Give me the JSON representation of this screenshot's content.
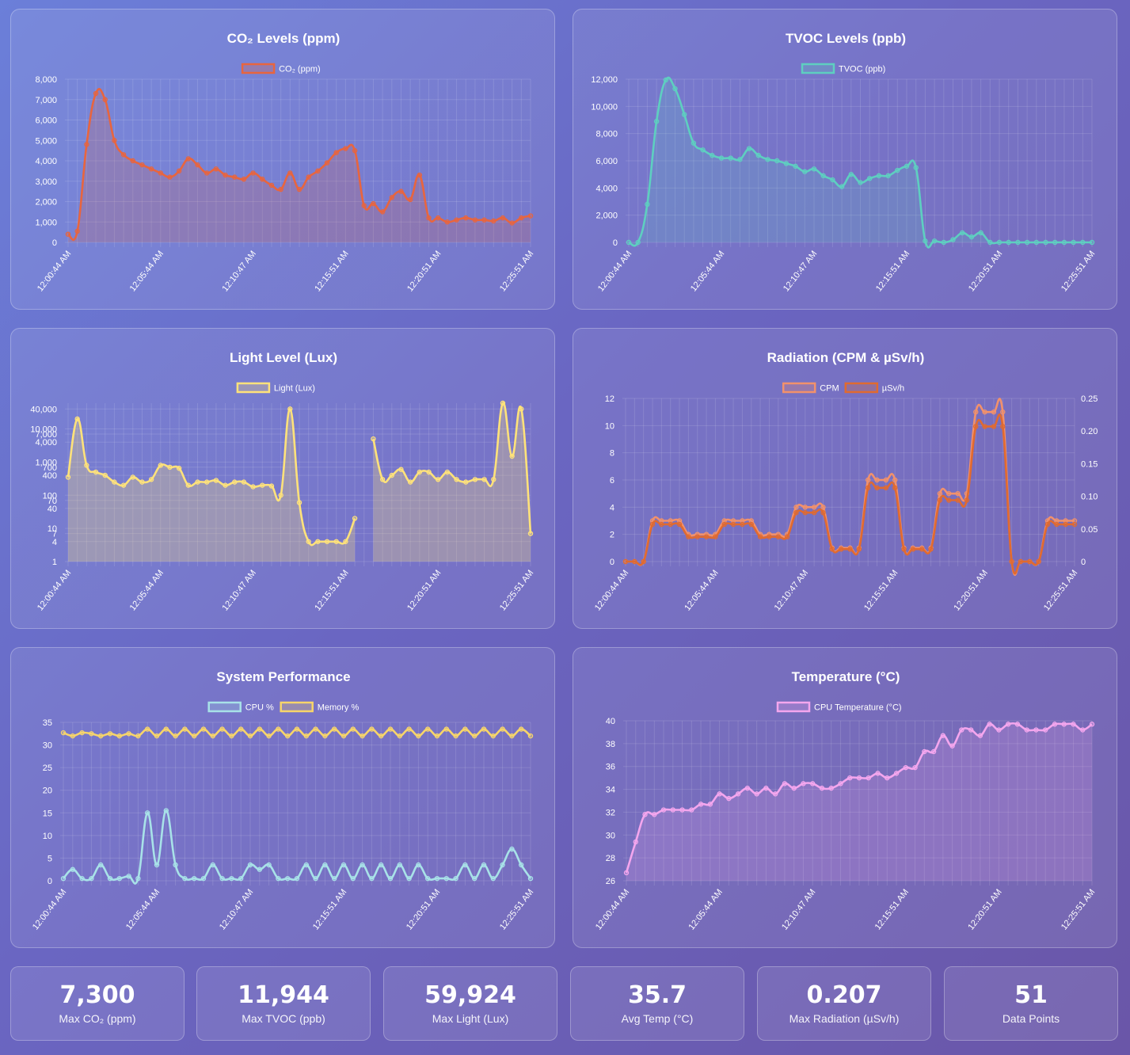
{
  "colors": {
    "co2": "#e8653e",
    "tvoc": "#5ecfc0",
    "light": "#ffe27a",
    "cpm": "#f2916b",
    "usv": "#e06a30",
    "cpu": "#a8e2e8",
    "mem": "#f7d56a",
    "temp": "#f4a6ee"
  },
  "chart_data": [
    {
      "id": "co2",
      "type": "area",
      "title": "CO₂ Levels (ppm)",
      "x_ticks": [
        "12:00:44 AM",
        "12:05:44 AM",
        "12:10:47 AM",
        "12:15:51 AM",
        "12:20:51 AM",
        "12:25:51 AM"
      ],
      "y_ticks": [
        "0",
        "1,000",
        "2,000",
        "3,000",
        "4,000",
        "5,000",
        "6,000",
        "7,000",
        "8,000"
      ],
      "ylim": [
        0,
        8000
      ],
      "series": [
        {
          "name": "CO₂ (ppm)",
          "color": "#e8653e",
          "values": [
            400,
            550,
            4800,
            7300,
            7000,
            5000,
            4300,
            4000,
            3800,
            3600,
            3400,
            3200,
            3500,
            4100,
            3800,
            3400,
            3600,
            3300,
            3200,
            3100,
            3400,
            3100,
            2800,
            2600,
            3400,
            2600,
            3200,
            3500,
            3900,
            4400,
            4600,
            4500,
            1800,
            1900,
            1500,
            2200,
            2500,
            2100,
            3300,
            1200,
            1200,
            1000,
            1100,
            1200,
            1100,
            1100,
            1050,
            1200,
            950,
            1200,
            1300
          ]
        }
      ]
    },
    {
      "id": "tvoc",
      "type": "area",
      "title": "TVOC Levels (ppb)",
      "x_ticks": [
        "12:00:44 AM",
        "12:05:44 AM",
        "12:10:47 AM",
        "12:15:51 AM",
        "12:20:51 AM",
        "12:25:51 AM"
      ],
      "y_ticks": [
        "0",
        "2,000",
        "4,000",
        "6,000",
        "8,000",
        "10,000",
        "12,000"
      ],
      "ylim": [
        0,
        12000
      ],
      "series": [
        {
          "name": "TVOC (ppb)",
          "color": "#5ecfc0",
          "values": [
            0,
            0,
            2800,
            8900,
            11944,
            11300,
            9400,
            7300,
            6800,
            6400,
            6200,
            6200,
            6100,
            6900,
            6400,
            6100,
            6000,
            5800,
            5600,
            5200,
            5400,
            4900,
            4600,
            4100,
            5000,
            4400,
            4700,
            4900,
            4900,
            5300,
            5600,
            5500,
            100,
            100,
            0,
            200,
            700,
            400,
            700,
            0,
            0,
            0,
            0,
            0,
            0,
            0,
            0,
            0,
            0,
            0,
            0
          ]
        }
      ]
    },
    {
      "id": "light",
      "type": "area",
      "title": "Light Level (Lux)",
      "x_ticks": [
        "12:00:44 AM",
        "12:05:44 AM",
        "12:10:47 AM",
        "12:15:51 AM",
        "12:20:51 AM",
        "12:25:51 AM"
      ],
      "y_ticks": [
        {
          "v": 1,
          "l": "1"
        },
        {
          "v": 4,
          "l": "4"
        },
        {
          "v": 7,
          "l": "7"
        },
        {
          "v": 10,
          "l": "10"
        },
        {
          "v": 40,
          "l": "40"
        },
        {
          "v": 70,
          "l": "70"
        },
        {
          "v": 100,
          "l": "100"
        },
        {
          "v": 400,
          "l": "400"
        },
        {
          "v": 700,
          "l": "700"
        },
        {
          "v": 1000,
          "l": "1,000"
        },
        {
          "v": 4000,
          "l": "4,000"
        },
        {
          "v": 7000,
          "l": "7,000"
        },
        {
          "v": 10000,
          "l": "10,000"
        },
        {
          "v": 40000,
          "l": "40,000"
        }
      ],
      "scale": "log",
      "ylim": [
        1,
        59924
      ],
      "series": [
        {
          "name": "Light (Lux)",
          "color": "#ffe27a",
          "values": [
            350,
            20000,
            800,
            500,
            400,
            250,
            200,
            350,
            250,
            300,
            800,
            700,
            650,
            200,
            250,
            250,
            280,
            200,
            250,
            250,
            180,
            200,
            190,
            100,
            40000,
            60,
            4,
            4,
            4,
            4,
            4,
            20,
            null,
            5000,
            300,
            400,
            600,
            250,
            500,
            500,
            300,
            500,
            300,
            250,
            300,
            300,
            300,
            59924,
            1500,
            40000,
            7
          ]
        }
      ]
    },
    {
      "id": "radiation",
      "type": "line",
      "title": "Radiation (CPM & µSv/h)",
      "x_ticks": [
        "12:00:44 AM",
        "12:05:44 AM",
        "12:10:47 AM",
        "12:15:51 AM",
        "12:20:51 AM",
        "12:25:51 AM"
      ],
      "y_ticks": [
        "0",
        "2",
        "4",
        "6",
        "8",
        "10",
        "12"
      ],
      "y2_ticks": [
        "0",
        "0.05",
        "0.10",
        "0.15",
        "0.20",
        "0.25"
      ],
      "ylim": [
        0,
        12
      ],
      "y2lim": [
        0,
        0.25
      ],
      "series": [
        {
          "name": "CPM",
          "color": "#f2916b",
          "values": [
            0,
            0,
            0,
            3,
            3,
            3,
            3,
            2,
            2,
            2,
            2,
            3,
            3,
            3,
            3,
            2,
            2,
            2,
            2,
            4,
            4,
            4,
            4,
            1,
            1,
            1,
            1,
            6,
            6,
            6,
            6,
            1,
            1,
            1,
            1,
            5,
            5,
            5,
            5,
            11,
            11,
            11,
            11,
            0,
            0,
            0,
            0,
            3,
            3,
            3,
            3
          ]
        },
        {
          "name": "µSv/h",
          "color": "#e06a30",
          "values": [
            0,
            0,
            0,
            0.057,
            0.057,
            0.057,
            0.057,
            0.038,
            0.038,
            0.038,
            0.038,
            0.057,
            0.057,
            0.057,
            0.057,
            0.038,
            0.038,
            0.038,
            0.038,
            0.075,
            0.075,
            0.075,
            0.075,
            0.019,
            0.019,
            0.019,
            0.019,
            0.113,
            0.113,
            0.113,
            0.113,
            0.019,
            0.019,
            0.019,
            0.019,
            0.094,
            0.094,
            0.094,
            0.094,
            0.207,
            0.207,
            0.207,
            0.207,
            0,
            0,
            0,
            0,
            0.057,
            0.057,
            0.057,
            0.057
          ]
        }
      ]
    },
    {
      "id": "system",
      "type": "line",
      "title": "System Performance",
      "x_ticks": [
        "12:00:44 AM",
        "12:05:44 AM",
        "12:10:47 AM",
        "12:15:51 AM",
        "12:20:51 AM",
        "12:25:51 AM"
      ],
      "y_ticks": [
        "0",
        "5",
        "10",
        "15",
        "20",
        "25",
        "30",
        "35"
      ],
      "ylim": [
        0,
        35
      ],
      "series": [
        {
          "name": "CPU %",
          "color": "#a8e2e8",
          "values": [
            0.5,
            2.5,
            0.5,
            0.5,
            3.5,
            0.5,
            0.5,
            1,
            0.5,
            15,
            3.5,
            15.5,
            3.5,
            0.5,
            0.5,
            0.5,
            3.5,
            0.5,
            0.5,
            0.5,
            3.5,
            2.5,
            3.5,
            0.5,
            0.5,
            0.5,
            3.5,
            0.5,
            3.5,
            0.5,
            3.5,
            0.5,
            3.5,
            0.5,
            3.5,
            0.5,
            3.5,
            0.5,
            3.5,
            0.5,
            0.5,
            0.5,
            0.5,
            3.5,
            0.5,
            3.5,
            0.5,
            3.5,
            7,
            3.5,
            0.5
          ]
        },
        {
          "name": "Memory %",
          "color": "#f7d56a",
          "values": [
            32.7,
            32,
            32.7,
            32.5,
            32,
            32.5,
            32,
            32.5,
            32,
            33.5,
            32,
            33.5,
            32,
            33.5,
            32,
            33.5,
            32,
            33.5,
            32,
            33.5,
            32,
            33.5,
            32,
            33.5,
            32,
            33.5,
            32,
            33.5,
            32,
            33.5,
            32,
            33.5,
            32,
            33.5,
            32,
            33.5,
            32,
            33.5,
            32,
            33.5,
            32,
            33.5,
            32,
            33.5,
            32,
            33.5,
            32,
            33.5,
            32,
            33.5,
            32
          ]
        }
      ]
    },
    {
      "id": "temperature",
      "type": "area",
      "title": "Temperature (°C)",
      "x_ticks": [
        "12:00:44 AM",
        "12:05:44 AM",
        "12:10:47 AM",
        "12:15:51 AM",
        "12:20:51 AM",
        "12:25:51 AM"
      ],
      "y_ticks": [
        "26",
        "28",
        "30",
        "32",
        "34",
        "36",
        "38",
        "40"
      ],
      "ylim": [
        26,
        40
      ],
      "series": [
        {
          "name": "CPU Temperature (°C)",
          "color": "#f4a6ee",
          "values": [
            26.7,
            29.4,
            31.8,
            31.8,
            32.2,
            32.2,
            32.2,
            32.2,
            32.7,
            32.7,
            33.6,
            33.2,
            33.6,
            34.1,
            33.6,
            34.1,
            33.6,
            34.5,
            34.1,
            34.5,
            34.5,
            34.1,
            34.1,
            34.5,
            35.0,
            35.0,
            35.0,
            35.4,
            35.0,
            35.4,
            35.9,
            35.9,
            37.3,
            37.3,
            38.7,
            37.8,
            39.2,
            39.2,
            38.7,
            39.7,
            39.2,
            39.7,
            39.7,
            39.2,
            39.2,
            39.2,
            39.7,
            39.7,
            39.7,
            39.2,
            39.7
          ]
        }
      ]
    }
  ],
  "stats": [
    {
      "value": "7,300",
      "label": "Max CO₂ (ppm)"
    },
    {
      "value": "11,944",
      "label": "Max TVOC (ppb)"
    },
    {
      "value": "59,924",
      "label": "Max Light (Lux)"
    },
    {
      "value": "35.7",
      "label": "Avg Temp (°C)"
    },
    {
      "value": "0.207",
      "label": "Max Radiation (µSv/h)"
    },
    {
      "value": "51",
      "label": "Data Points"
    }
  ]
}
